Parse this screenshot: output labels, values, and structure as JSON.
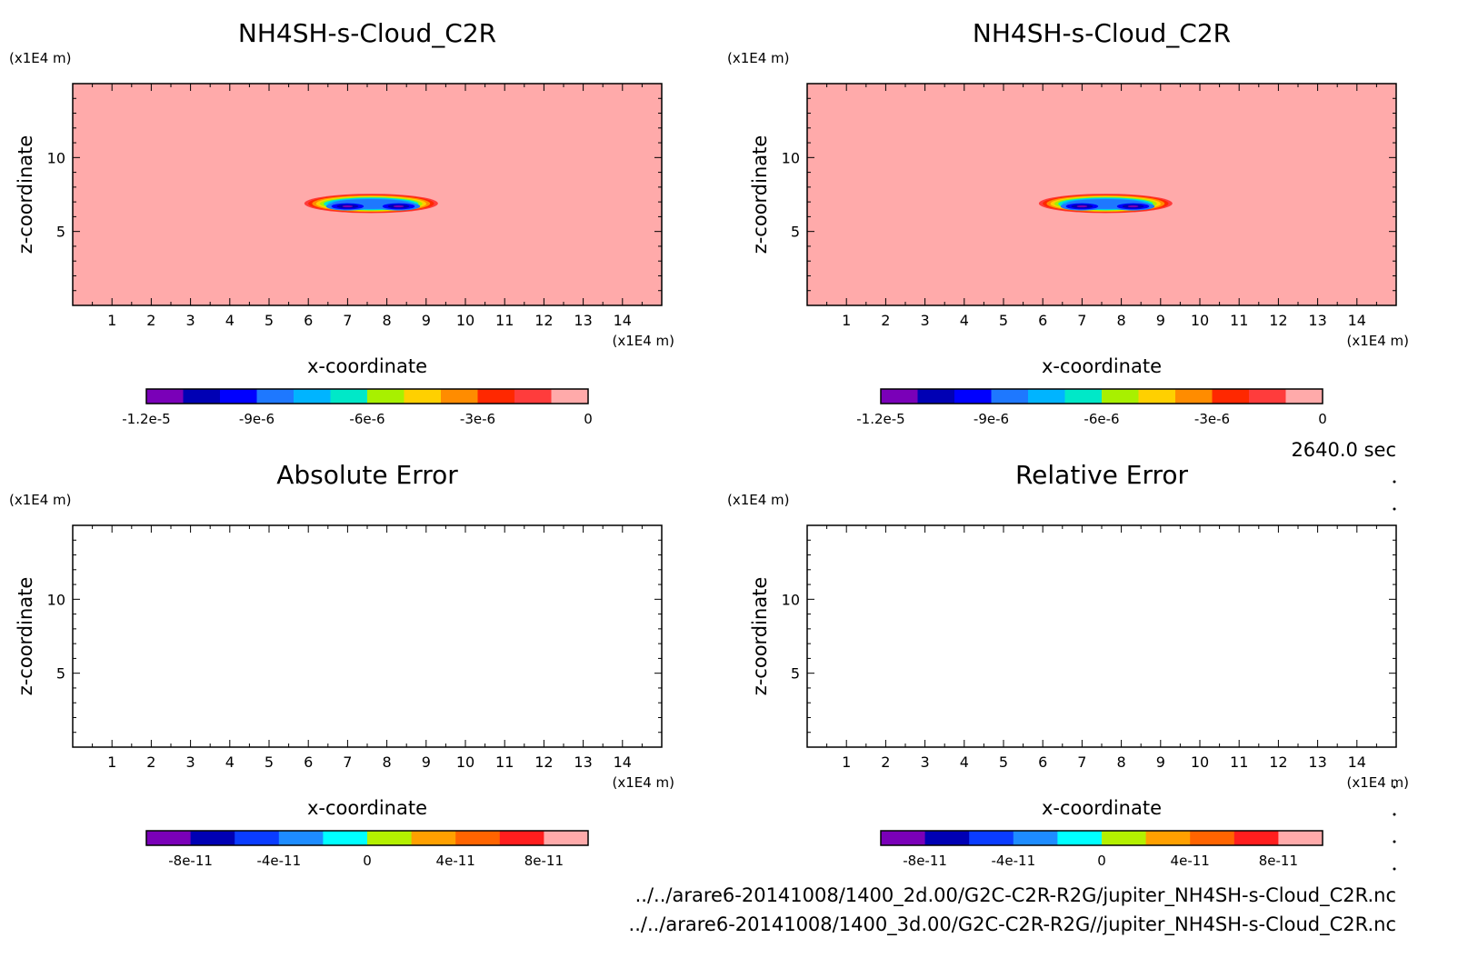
{
  "figure": {
    "time_label": "2640.0 sec",
    "files": [
      "../../arare6-20141008/1400_2d.00/G2C-C2R-R2G/jupiter_NH4SH-s-Cloud_C2R.nc",
      "../../arare6-20141008/1400_3d.00/G2C-C2R-R2G//jupiter_NH4SH-s-Cloud_C2R.nc"
    ]
  },
  "chart_data": [
    {
      "type": "heatmap",
      "title": "NH4SH-s-Cloud_C2R",
      "xlabel": "x-coordinate",
      "ylabel": "z-coordinate",
      "x_unit": "(x1E4 m)",
      "y_unit": "(x1E4 m)",
      "xlim": [
        0,
        15
      ],
      "ylim": [
        0,
        15
      ],
      "x_ticks": [
        1,
        2,
        3,
        4,
        5,
        6,
        7,
        8,
        9,
        10,
        11,
        12,
        13,
        14
      ],
      "y_ticks": [
        5,
        10
      ],
      "background_level": 0,
      "cloud": {
        "x_range": [
          5.8,
          9.4
        ],
        "z_range": [
          6.2,
          7.6
        ],
        "minimum": -1.2e-05,
        "minimum_centers": [
          [
            7.0,
            6.7
          ],
          [
            8.3,
            6.7
          ]
        ]
      },
      "colorbar": {
        "levels": 12,
        "range": [
          -1.2e-05,
          0
        ],
        "tick_labels": [
          "-1.2e-5",
          "-9e-6",
          "-6e-6",
          "-3e-6",
          "0"
        ],
        "tick_values": [
          -1.2e-05,
          -9e-06,
          -6e-06,
          -3e-06,
          0
        ]
      }
    },
    {
      "type": "heatmap",
      "title": "NH4SH-s-Cloud_C2R",
      "xlabel": "x-coordinate",
      "ylabel": "z-coordinate",
      "x_unit": "(x1E4 m)",
      "y_unit": "(x1E4 m)",
      "xlim": [
        0,
        15
      ],
      "ylim": [
        0,
        15
      ],
      "x_ticks": [
        1,
        2,
        3,
        4,
        5,
        6,
        7,
        8,
        9,
        10,
        11,
        12,
        13,
        14
      ],
      "y_ticks": [
        5,
        10
      ],
      "background_level": 0,
      "cloud": {
        "x_range": [
          5.8,
          9.4
        ],
        "z_range": [
          6.2,
          7.6
        ],
        "minimum": -1.2e-05,
        "minimum_centers": [
          [
            7.0,
            6.7
          ],
          [
            8.3,
            6.7
          ]
        ]
      },
      "colorbar": {
        "levels": 12,
        "range": [
          -1.2e-05,
          0
        ],
        "tick_labels": [
          "-1.2e-5",
          "-9e-6",
          "-6e-6",
          "-3e-6",
          "0"
        ],
        "tick_values": [
          -1.2e-05,
          -9e-06,
          -6e-06,
          -3e-06,
          0
        ]
      }
    },
    {
      "type": "heatmap",
      "title": "Absolute Error",
      "xlabel": "x-coordinate",
      "ylabel": "z-coordinate",
      "x_unit": "(x1E4 m)",
      "y_unit": "(x1E4 m)",
      "xlim": [
        0,
        15
      ],
      "ylim": [
        0,
        15
      ],
      "x_ticks": [
        1,
        2,
        3,
        4,
        5,
        6,
        7,
        8,
        9,
        10,
        11,
        12,
        13,
        14
      ],
      "y_ticks": [
        5,
        10
      ],
      "background_level": null,
      "colorbar": {
        "levels": 10,
        "range": [
          -1e-10,
          1e-10
        ],
        "tick_labels": [
          "-8e-11",
          "-4e-11",
          "0",
          "4e-11",
          "8e-11"
        ],
        "tick_values": [
          -8e-11,
          -4e-11,
          0,
          4e-11,
          8e-11
        ]
      }
    },
    {
      "type": "heatmap",
      "title": "Relative Error",
      "xlabel": "x-coordinate",
      "ylabel": "z-coordinate",
      "x_unit": "(x1E4 m)",
      "y_unit": "(x1E4 m)",
      "xlim": [
        0,
        15
      ],
      "ylim": [
        0,
        15
      ],
      "x_ticks": [
        1,
        2,
        3,
        4,
        5,
        6,
        7,
        8,
        9,
        10,
        11,
        12,
        13,
        14
      ],
      "y_ticks": [
        5,
        10
      ],
      "background_level": null,
      "colorbar": {
        "levels": 10,
        "range": [
          -1e-10,
          1e-10
        ],
        "tick_labels": [
          "-8e-11",
          "-4e-11",
          "0",
          "4e-11",
          "8e-11"
        ],
        "tick_values": [
          -8e-11,
          -4e-11,
          0,
          4e-11,
          8e-11
        ]
      }
    }
  ],
  "colors": {
    "palette12": [
      "#7a00b8",
      "#0000b4",
      "#0000ff",
      "#1e78ff",
      "#00b4ff",
      "#00e8c8",
      "#a8f000",
      "#ffd000",
      "#ff8c00",
      "#ff2800",
      "#ff3c3c",
      "#ffaaaa"
    ],
    "palette10": [
      "#7a00b8",
      "#0000b4",
      "#0a3cff",
      "#1e8cff",
      "#00ffff",
      "#b4f000",
      "#ffa000",
      "#ff6400",
      "#ff1e1e",
      "#ffaaaa"
    ],
    "panel_fill": "#ffaaaa",
    "axis": "#000000"
  }
}
